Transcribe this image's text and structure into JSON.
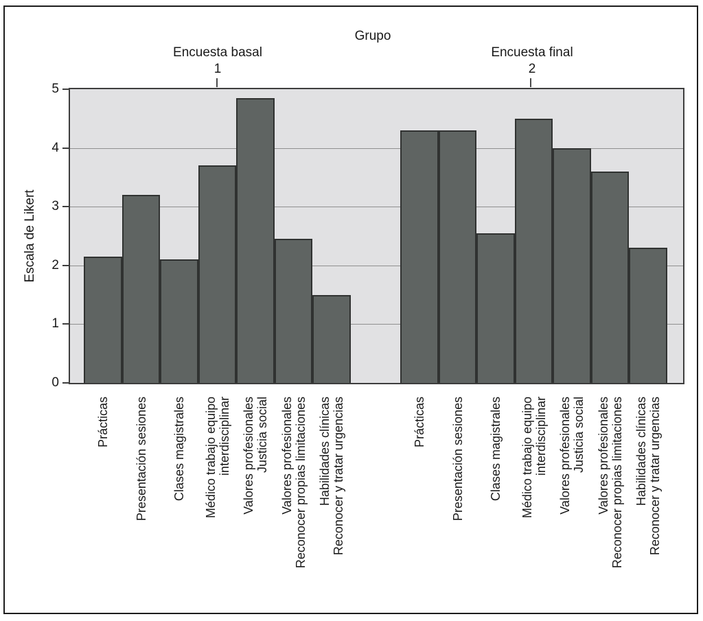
{
  "chart_data": {
    "type": "bar",
    "title": "Grupo",
    "ylabel": "Escala de Likert",
    "ylim": [
      0,
      5
    ],
    "yticks": [
      0,
      1,
      2,
      3,
      4,
      5
    ],
    "gridlines_at": [
      1,
      2,
      3,
      4
    ],
    "legend": "none",
    "groups": [
      {
        "number": "1",
        "header": "Encuesta basal",
        "categories": [
          [
            "Prácticas"
          ],
          [
            "Presentación sesiones"
          ],
          [
            "Clases magistrales"
          ],
          [
            "Médico trabajo equipo",
            "interdisciplinar"
          ],
          [
            "Valores profesionales",
            "Justicia social"
          ],
          [
            "Valores profesionales",
            "Reconocer propias limitaciones"
          ],
          [
            "Habilidades clínicas",
            "Reconocer y tratar urgencias"
          ]
        ],
        "values": [
          2.15,
          3.2,
          2.1,
          3.7,
          4.85,
          2.45,
          1.5
        ]
      },
      {
        "number": "2",
        "header": "Encuesta final",
        "categories": [
          [
            "Prácticas"
          ],
          [
            "Presentación sesiones"
          ],
          [
            "Clases magistrales"
          ],
          [
            "Médico trabajo equipo",
            "interdisciplinar"
          ],
          [
            "Valores profesionales",
            "Justicia social"
          ],
          [
            "Valores profesionales",
            "Reconocer propias limitaciones"
          ],
          [
            "Habilidades clínicas",
            "Reconocer y tratar urgencias"
          ]
        ],
        "values": [
          4.3,
          4.3,
          2.55,
          4.5,
          4.0,
          3.6,
          2.3
        ]
      }
    ],
    "colors": {
      "bar_fill": "#5f6462",
      "bar_border": "#303231",
      "plot_bg": "#e1e1e3",
      "gridline": "#8f8f8f",
      "axis": "#3d3d3d",
      "text": "#1a1a1a"
    }
  }
}
